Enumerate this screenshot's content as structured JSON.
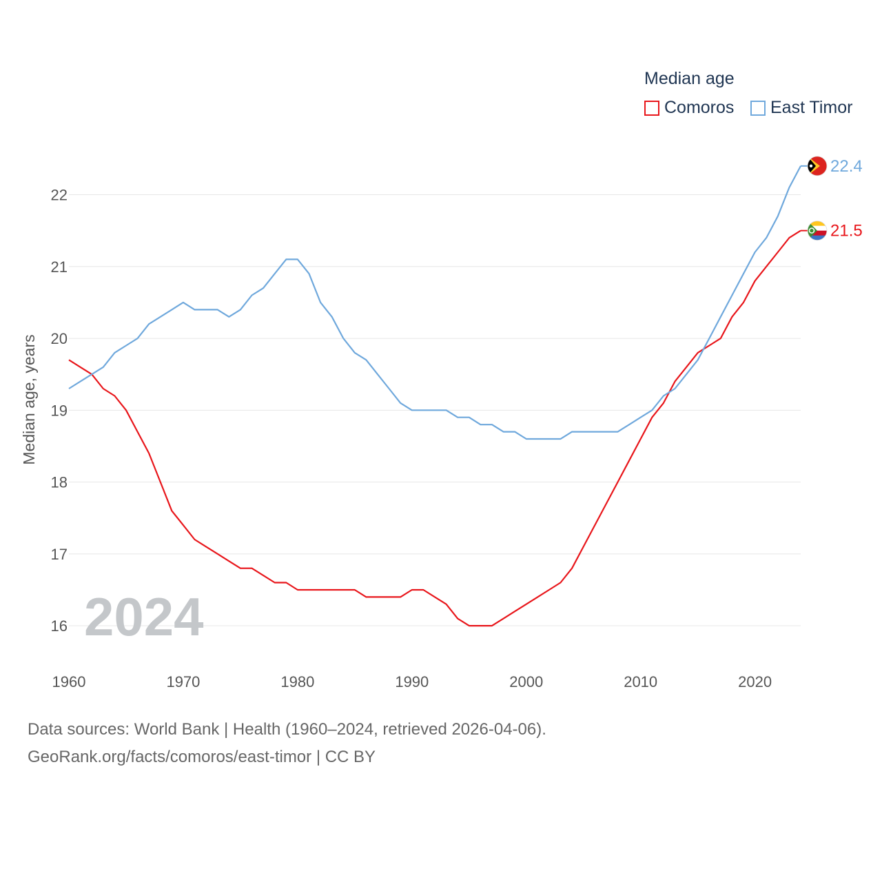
{
  "chart_data": {
    "type": "line",
    "legend_title": "Median age",
    "ylabel": "Median age, years",
    "xlabel": "",
    "xlim": [
      1960,
      2024
    ],
    "ylim": [
      15.55,
      22.6
    ],
    "y_ticks": [
      "16",
      "17",
      "18",
      "19",
      "20",
      "21",
      "22"
    ],
    "x_ticks": [
      "1960",
      "1970",
      "1980",
      "1990",
      "2000",
      "2010",
      "2020"
    ],
    "year_label": "2024",
    "grid": true,
    "x": [
      1960,
      1961,
      1962,
      1963,
      1964,
      1965,
      1966,
      1967,
      1968,
      1969,
      1970,
      1971,
      1972,
      1973,
      1974,
      1975,
      1976,
      1977,
      1978,
      1979,
      1980,
      1981,
      1982,
      1983,
      1984,
      1985,
      1986,
      1987,
      1988,
      1989,
      1990,
      1991,
      1992,
      1993,
      1994,
      1995,
      1996,
      1997,
      1998,
      1999,
      2000,
      2001,
      2002,
      2003,
      2004,
      2005,
      2006,
      2007,
      2008,
      2009,
      2010,
      2011,
      2012,
      2013,
      2014,
      2015,
      2016,
      2017,
      2018,
      2019,
      2020,
      2021,
      2022,
      2023,
      2024
    ],
    "series": [
      {
        "name": "Comoros",
        "color": "#e8151a",
        "end_label": "21.5",
        "values": [
          19.7,
          19.6,
          19.5,
          19.3,
          19.2,
          19.0,
          18.7,
          18.4,
          18.0,
          17.6,
          17.4,
          17.2,
          17.1,
          17.0,
          16.9,
          16.8,
          16.8,
          16.7,
          16.6,
          16.6,
          16.5,
          16.5,
          16.5,
          16.5,
          16.5,
          16.5,
          16.4,
          16.4,
          16.4,
          16.4,
          16.5,
          16.5,
          16.4,
          16.3,
          16.1,
          16.0,
          16.0,
          16.0,
          16.1,
          16.2,
          16.3,
          16.4,
          16.5,
          16.6,
          16.8,
          17.1,
          17.4,
          17.7,
          18.0,
          18.3,
          18.6,
          18.9,
          19.1,
          19.4,
          19.6,
          19.8,
          19.9,
          20.0,
          20.3,
          20.5,
          20.8,
          21.0,
          21.2,
          21.4,
          21.5
        ]
      },
      {
        "name": "East Timor",
        "color": "#6fa8dc",
        "end_label": "22.4",
        "values": [
          19.3,
          19.4,
          19.5,
          19.6,
          19.8,
          19.9,
          20.0,
          20.2,
          20.3,
          20.4,
          20.5,
          20.4,
          20.4,
          20.4,
          20.3,
          20.4,
          20.6,
          20.7,
          20.9,
          21.1,
          21.1,
          20.9,
          20.5,
          20.3,
          20.0,
          19.8,
          19.7,
          19.5,
          19.3,
          19.1,
          19.0,
          19.0,
          19.0,
          19.0,
          18.9,
          18.9,
          18.8,
          18.8,
          18.7,
          18.7,
          18.6,
          18.6,
          18.6,
          18.6,
          18.7,
          18.7,
          18.7,
          18.7,
          18.7,
          18.8,
          18.9,
          19.0,
          19.2,
          19.3,
          19.5,
          19.7,
          20.0,
          20.3,
          20.6,
          20.9,
          21.2,
          21.4,
          21.7,
          22.1,
          22.4
        ]
      }
    ]
  },
  "footer": {
    "source_line": "Data sources: World Bank | Health (1960–2024, retrieved 2026-04-06).",
    "attribution": "GeoRank.org/facts/comoros/east-timor | CC BY"
  }
}
